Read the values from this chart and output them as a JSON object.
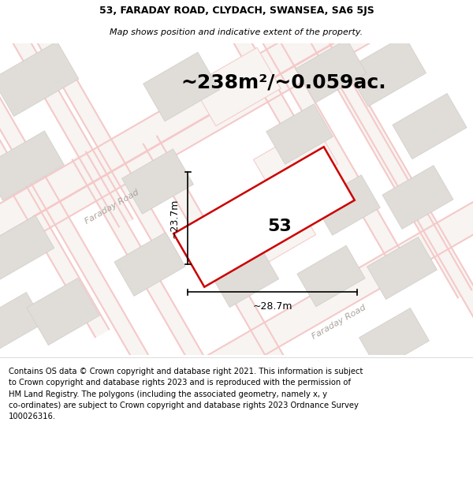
{
  "title_line1": "53, FARADAY ROAD, CLYDACH, SWANSEA, SA6 5JS",
  "title_line2": "Map shows position and indicative extent of the property.",
  "area_text": "~238m²/~0.059ac.",
  "label_53": "53",
  "dim_width": "~28.7m",
  "dim_height": "~23.7m",
  "road_label_upper": "Faraday Road",
  "road_label_lower": "Faraday Road",
  "footer_text": "Contains OS data © Crown copyright and database right 2021. This information is subject\nto Crown copyright and database rights 2023 and is reproduced with the permission of\nHM Land Registry. The polygons (including the associated geometry, namely x, y\nco-ordinates) are subject to Crown copyright and database rights 2023 Ordnance Survey\n100026316.",
  "map_bg": "#f7f4f1",
  "building_fill": "#e0dcd8",
  "building_edge": "#d0ccc8",
  "property_fill": "#ffffff",
  "property_edge": "#cc0000",
  "road_stripe": "#f5c8c8",
  "road_center": "#f7f4f1",
  "title_fontsize": 9,
  "area_fontsize": 18,
  "label_fontsize": 16,
  "dim_fontsize": 9,
  "road_label_fontsize": 8,
  "footer_fontsize": 7.2
}
